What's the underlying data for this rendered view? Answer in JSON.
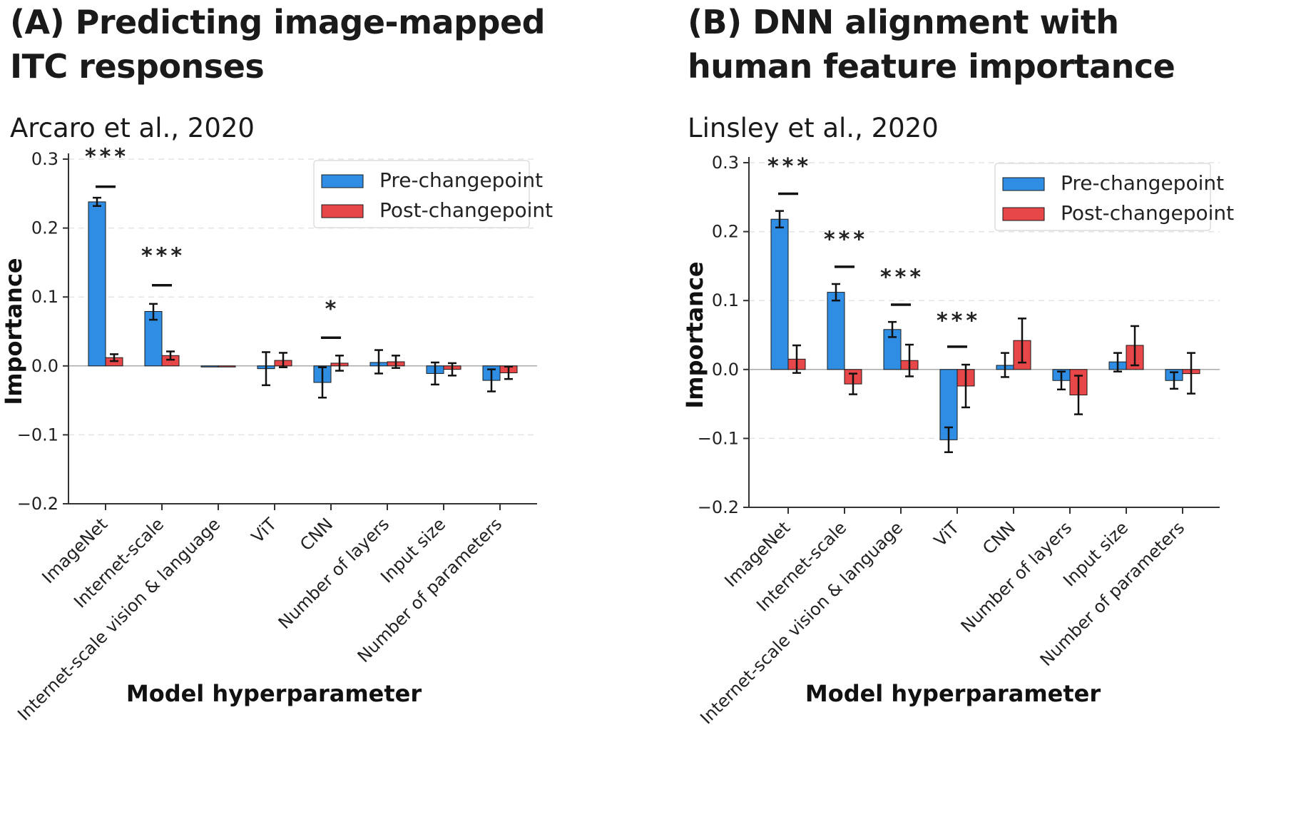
{
  "colors": {
    "pre": "#2f8ee4",
    "post": "#e8474a",
    "grid": "#e4e4e4",
    "axis": "#333333"
  },
  "chart_data": [
    {
      "type": "bar",
      "title": "(A) Predicting image-mapped ITC responses",
      "subtitle": "Arcaro et al., 2020",
      "xlabel": "Model hyperparameter",
      "ylabel": "Importance",
      "ylim": [
        -0.2,
        0.3
      ],
      "yticks": [
        -0.2,
        -0.1,
        0.0,
        0.1,
        0.2,
        0.3
      ],
      "ytick_labels": [
        "−0.2",
        "−0.1",
        "0.0",
        "0.1",
        "0.2",
        "0.3"
      ],
      "grid": true,
      "legend_position": "top-right",
      "categories": [
        "ImageNet",
        "Internet-scale",
        "Internet-scale vision & language",
        "ViT",
        "CNN",
        "Number of layers",
        "Input size",
        "Number of parameters"
      ],
      "series": [
        {
          "name": "Pre-changepoint",
          "values": [
            0.238,
            0.079,
            0.0,
            -0.004,
            -0.024,
            0.005,
            -0.011,
            -0.021
          ],
          "err_low": [
            0.232,
            0.067,
            0.0,
            -0.028,
            -0.046,
            -0.011,
            -0.027,
            -0.037
          ],
          "err_high": [
            0.244,
            0.09,
            0.0,
            0.02,
            -0.002,
            0.023,
            0.005,
            -0.005
          ]
        },
        {
          "name": "Post-changepoint",
          "values": [
            0.012,
            0.015,
            0.0,
            0.008,
            0.004,
            0.006,
            -0.005,
            -0.01
          ],
          "err_low": [
            0.007,
            0.009,
            0.0,
            -0.002,
            -0.007,
            -0.003,
            -0.014,
            -0.019
          ],
          "err_high": [
            0.017,
            0.021,
            0.0,
            0.019,
            0.015,
            0.015,
            0.004,
            -0.001
          ]
        }
      ],
      "significance": [
        {
          "category": 0,
          "label": "***",
          "bar_y": 0.26,
          "text_y": 0.312
        },
        {
          "category": 1,
          "label": "***",
          "bar_y": 0.117,
          "text_y": 0.168
        },
        {
          "category": 4,
          "label": "*",
          "bar_y": 0.041,
          "text_y": 0.091
        }
      ]
    },
    {
      "type": "bar",
      "title": "(B) DNN alignment with human feature importance",
      "subtitle": "Linsley et al., 2020",
      "xlabel": "Model hyperparameter",
      "ylabel": "Importance",
      "ylim": [
        -0.2,
        0.3
      ],
      "yticks": [
        -0.2,
        -0.1,
        0.0,
        0.1,
        0.2,
        0.3
      ],
      "ytick_labels": [
        "−0.2",
        "−0.1",
        "0.0",
        "0.1",
        "0.2",
        "0.3"
      ],
      "grid": true,
      "legend_position": "top-right",
      "categories": [
        "ImageNet",
        "Internet-scale",
        "Internet-scale vision & language",
        "ViT",
        "CNN",
        "Number of layers",
        "Input size",
        "Number of parameters"
      ],
      "series": [
        {
          "name": "Pre-changepoint",
          "values": [
            0.218,
            0.112,
            0.058,
            -0.102,
            0.006,
            -0.016,
            0.011,
            -0.016
          ],
          "err_low": [
            0.206,
            0.1,
            0.047,
            -0.12,
            -0.011,
            -0.029,
            -0.003,
            -0.028
          ],
          "err_high": [
            0.23,
            0.124,
            0.069,
            -0.084,
            0.024,
            -0.003,
            0.024,
            -0.004
          ]
        },
        {
          "name": "Post-changepoint",
          "values": [
            0.015,
            -0.021,
            0.013,
            -0.024,
            0.042,
            -0.037,
            0.035,
            -0.006
          ],
          "err_low": [
            -0.005,
            -0.036,
            -0.01,
            -0.055,
            0.01,
            -0.065,
            0.006,
            -0.035
          ],
          "err_high": [
            0.035,
            -0.006,
            0.036,
            0.007,
            0.074,
            -0.009,
            0.063,
            0.024
          ]
        }
      ],
      "significance": [
        {
          "category": 0,
          "label": "***",
          "bar_y": 0.255,
          "text_y": 0.303
        },
        {
          "category": 1,
          "label": "***",
          "bar_y": 0.149,
          "text_y": 0.197
        },
        {
          "category": 2,
          "label": "***",
          "bar_y": 0.094,
          "text_y": 0.142
        },
        {
          "category": 3,
          "label": "***",
          "bar_y": 0.033,
          "text_y": 0.079
        }
      ]
    }
  ]
}
